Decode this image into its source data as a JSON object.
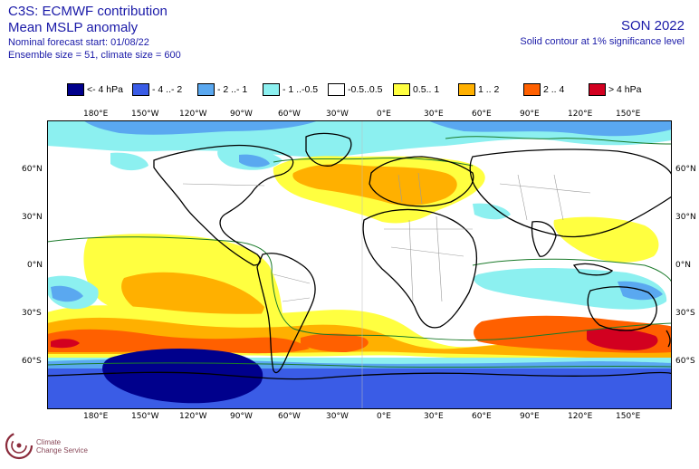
{
  "header": {
    "title_line1": "C3S: ECMWF contribution",
    "title_line2": "Mean MSLP anomaly",
    "start": "Nominal forecast start: 01/08/22",
    "ensemble": "Ensemble size = 51, climate size = 600",
    "season": "SON 2022",
    "note": "Solid contour at 1% significance level"
  },
  "legend": [
    {
      "label": "<- 4 hPa",
      "color": "#00008c"
    },
    {
      "label": "- 4 ..- 2",
      "color": "#3a5ce6"
    },
    {
      "label": "- 2 ..- 1",
      "color": "#5aa8f0"
    },
    {
      "label": "- 1 ..-0.5",
      "color": "#8cf0f0"
    },
    {
      "label": "-0.5..0.5",
      "color": "#ffffff"
    },
    {
      "label": "0.5.. 1",
      "color": "#ffff40"
    },
    {
      "label": "1 .. 2",
      "color": "#ffb000"
    },
    {
      "label": "2 .. 4",
      "color": "#ff6000"
    },
    {
      "label": "> 4 hPa",
      "color": "#d20020"
    }
  ],
  "axes": {
    "lon_labels": [
      "180°E",
      "150°W",
      "120°W",
      "90°W",
      "60°W",
      "30°W",
      "0°E",
      "30°E",
      "60°E",
      "90°E",
      "120°E",
      "150°E"
    ],
    "lat_labels": [
      "60°N",
      "30°N",
      "0°N",
      "30°S",
      "60°S"
    ]
  },
  "logo": {
    "line1": "Climate",
    "line2": "Change Service"
  }
}
